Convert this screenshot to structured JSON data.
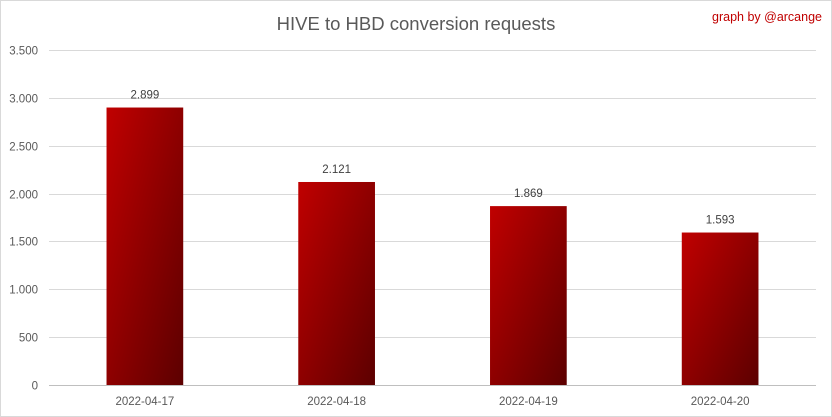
{
  "chart_data": {
    "type": "bar",
    "title": "HIVE to HBD conversion requests",
    "credit": "graph by @arcange",
    "categories": [
      "2022-04-17",
      "2022-04-18",
      "2022-04-19",
      "2022-04-20"
    ],
    "values": [
      2899,
      2121,
      1869,
      1593
    ],
    "value_labels": [
      "2.899",
      "2.121",
      "1.869",
      "1.593"
    ],
    "ylim": [
      0,
      3500
    ],
    "yticks": [
      0,
      500,
      1000,
      1500,
      2000,
      2500,
      3000,
      3500
    ],
    "ytick_labels": [
      "0",
      "500",
      "1.000",
      "1.500",
      "2.000",
      "2.500",
      "3.000",
      "3.500"
    ],
    "xlabel": "",
    "ylabel": "",
    "grid": true,
    "legend": "none",
    "colors": {
      "bar_light": "#c00000",
      "bar_dark": "#5c0000",
      "credit": "#c00000",
      "text": "#595959"
    }
  }
}
